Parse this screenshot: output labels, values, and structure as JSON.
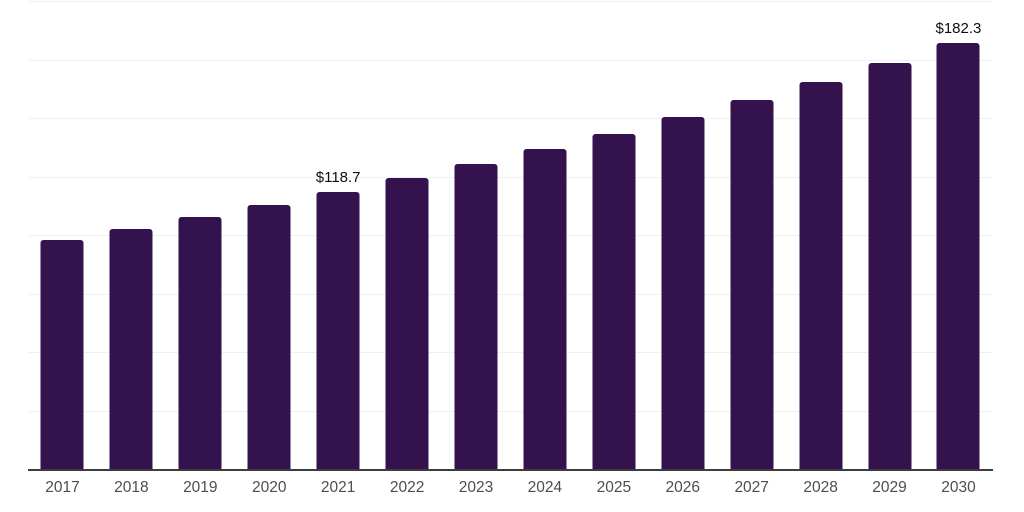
{
  "chart": {
    "background_color": "#ffffff",
    "bar_color": "#34124d",
    "grid_color": "#f0f0f0",
    "axis_line_color": "#3d3d3d",
    "tick_label_color": "#4d4d4d",
    "data_label_color": "#0f0f0f"
  },
  "chart_data": {
    "type": "bar",
    "categories": [
      "2017",
      "2018",
      "2019",
      "2020",
      "2021",
      "2022",
      "2023",
      "2024",
      "2025",
      "2026",
      "2027",
      "2028",
      "2029",
      "2030"
    ],
    "values": [
      98.4,
      102.9,
      107.9,
      113.2,
      118.7,
      124.5,
      130.6,
      137.0,
      143.6,
      150.7,
      158.0,
      165.7,
      173.8,
      182.3
    ],
    "data_labels": [
      {
        "category": "2021",
        "text": "$118.7"
      },
      {
        "category": "2030",
        "text": "$182.3"
      }
    ],
    "xlabel": "",
    "ylabel": "",
    "ylim": [
      0,
      200
    ],
    "grid_step": 25,
    "grid": true,
    "legend": false,
    "y_tick_labels_visible": false
  }
}
